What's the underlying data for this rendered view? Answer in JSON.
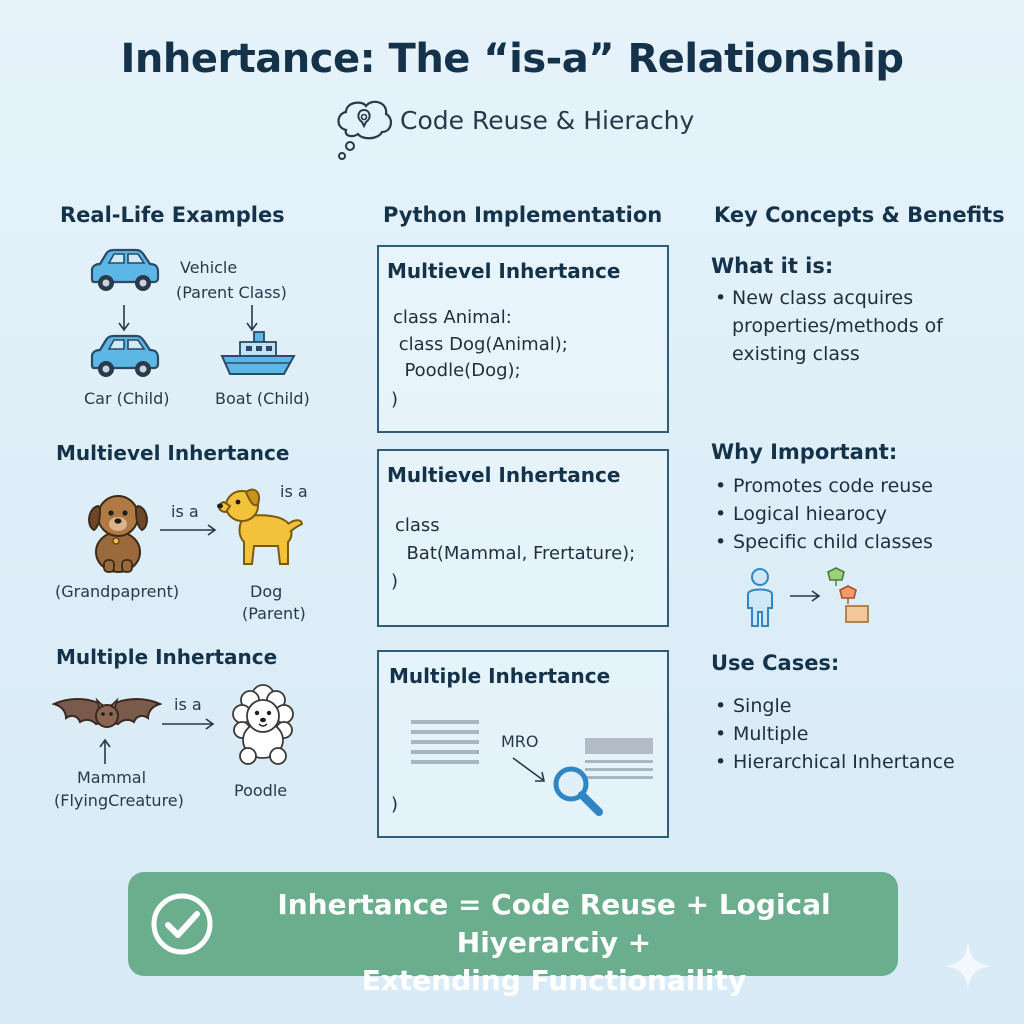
{
  "header": {
    "title": "Inhertance: The “is-a” Relationship",
    "subtitle": "Code Reuse & Hierachy"
  },
  "left": {
    "heading": "Real-Life Examples",
    "vehicle_label": "Vehicle",
    "vehicle_sub": "(Parent Class)",
    "car_label": "Car (Child)",
    "boat_label": "Boat (Child)",
    "multilevel_heading": "Multievel Inhertance",
    "is_a_1": "is a",
    "is_a_2": "is a",
    "grandparent_label": "(Grandpaprent)",
    "dog_label": "Dog",
    "dog_sub": "(Parent)",
    "multiple_heading": "Multiple Inhertance",
    "is_a_3": "is a",
    "mammal_label": "Mammal",
    "mammal_sub": "(FlyingCreature)",
    "poodle_label": "Poodle"
  },
  "middle": {
    "heading": "Python Implementation",
    "box1": {
      "title": "Multievel Inhertance",
      "lines": [
        "class Animal:",
        " class Dog(Animal);",
        "  Poodle(Dog);",
        ")"
      ]
    },
    "box2": {
      "title": "Multievel Inhertance",
      "lines": [
        "class",
        "  Bat(Mammal, Frertature);",
        ")"
      ]
    },
    "box3": {
      "title": "Multiple Inhertance",
      "mro_label": "MRO",
      "close": ")"
    }
  },
  "right": {
    "heading": "Key Concepts & Benefits",
    "what_heading": "What it is:",
    "what_lines": [
      "New class acquires",
      "properties/methods of",
      "existing class"
    ],
    "why_heading": "Why Important:",
    "why_items": [
      "Promotes code reuse",
      " Logical hiearocy",
      "Specific child classes"
    ],
    "use_heading": "Use Cases:",
    "use_items": [
      "Single",
      "Multiple",
      "Hierarchical Inhertance"
    ]
  },
  "banner": {
    "line1": "Inhertance = Code Reuse + Logical Hiyerarciy +",
    "line2": "Extending Functionaility"
  },
  "colors": {
    "banner": "#6aae8e",
    "heading": "#14324a",
    "car_blue": "#5cb6e6",
    "dog_brown": "#9a6a3c",
    "dog_yellow": "#f2c33a",
    "magnifier": "#2f86c4"
  }
}
